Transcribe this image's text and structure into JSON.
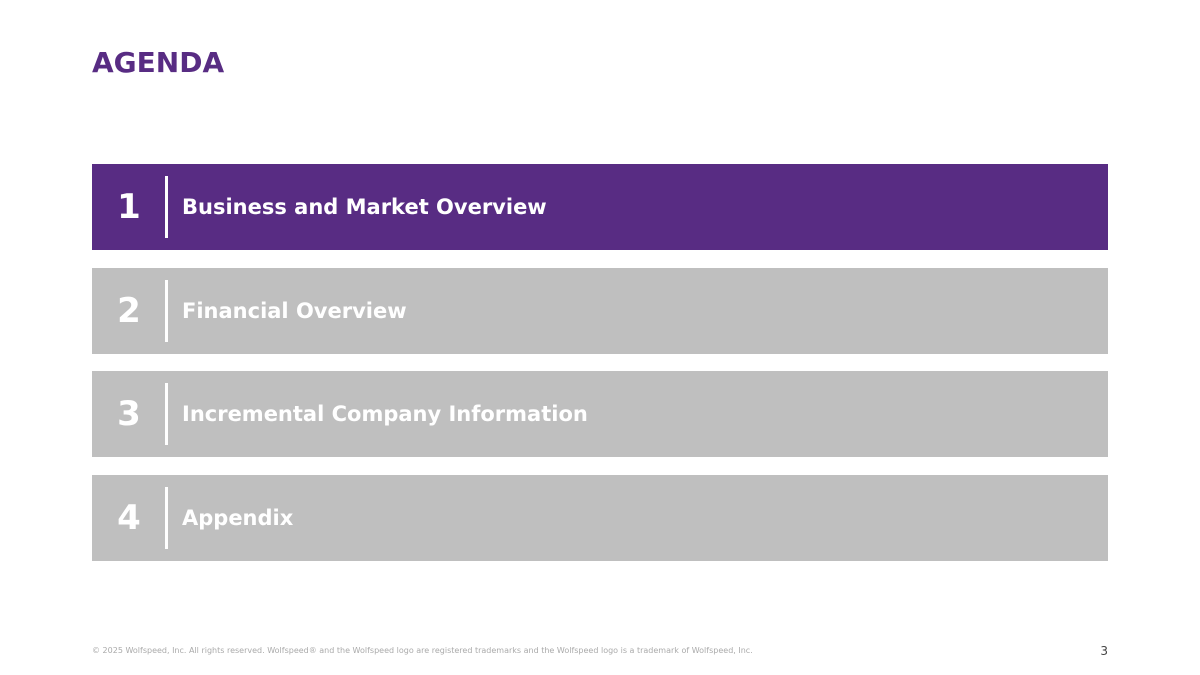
{
  "header": {
    "title": "AGENDA"
  },
  "items": [
    {
      "number": "1",
      "label": "Business and Market Overview",
      "active": true
    },
    {
      "number": "2",
      "label": "Financial Overview",
      "active": false
    },
    {
      "number": "3",
      "label": "Incremental Company Information",
      "active": false
    },
    {
      "number": "4",
      "label": "Appendix",
      "active": false
    }
  ],
  "footer": {
    "copyright": "© 2025 Wolfspeed, Inc. All rights reserved. Wolfspeed® and the Wolfspeed logo are registered trademarks and the Wolfspeed logo is a trademark of Wolfspeed, Inc.",
    "page": "3"
  }
}
